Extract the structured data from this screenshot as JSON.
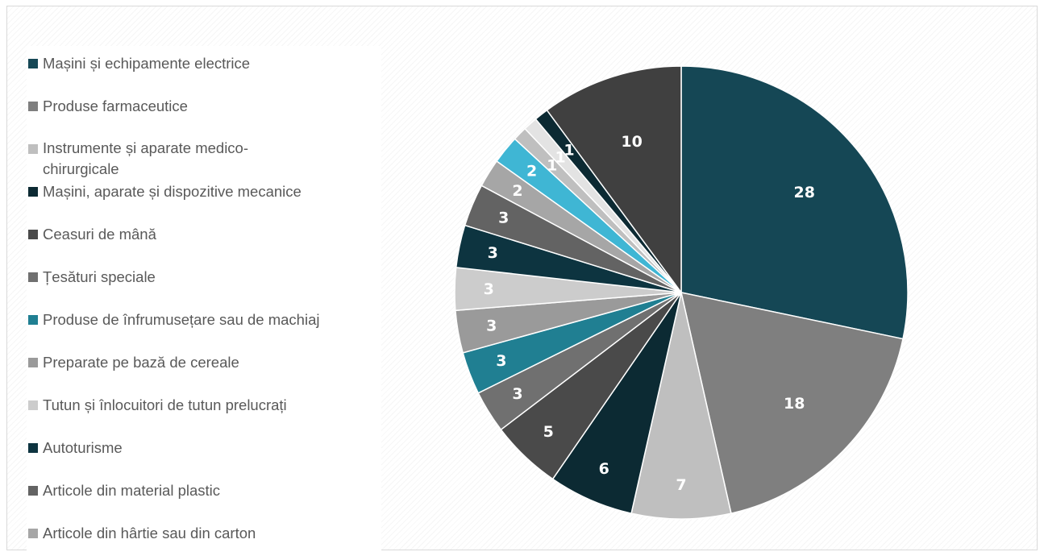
{
  "chart_data": {
    "type": "pie",
    "legend_placement": "left",
    "start_angle_deg": 0,
    "direction": "clockwise",
    "slices": [
      {
        "label": "Mașini și echipamente electrice",
        "value": 28,
        "color": "#154755",
        "label_color": "#ffffff"
      },
      {
        "label": "Produse farmaceutice",
        "value": 18,
        "color": "#7f7f7f",
        "label_color": "#ffffff"
      },
      {
        "label": "Instrumente și aparate medico-chirurgicale",
        "value": 7,
        "color": "#bfbfbf",
        "label_color": "#ffffff"
      },
      {
        "label": "Mașini, aparate și dispozitive mecanice",
        "value": 6,
        "color": "#0c2a33",
        "label_color": "#ffffff"
      },
      {
        "label": "Ceasuri de mână",
        "value": 5,
        "color": "#4a4a4a",
        "label_color": "#ffffff"
      },
      {
        "label": "Țesături speciale",
        "value": 3,
        "color": "#707070",
        "label_color": "#ffffff"
      },
      {
        "label": "Produse de înfrumusețare sau de machiaj",
        "value": 3,
        "color": "#207f92",
        "label_color": "#ffffff"
      },
      {
        "label": "Preparate pe bază de cereale",
        "value": 3,
        "color": "#9a9a9a",
        "label_color": "#ffffff"
      },
      {
        "label": "Tutun și înlocuitori de tutun prelucrați",
        "value": 3,
        "color": "#cccccc",
        "label_color": "#ffffff"
      },
      {
        "label": "Autoturisme",
        "value": 3,
        "color": "#0d3440",
        "label_color": "#ffffff"
      },
      {
        "label": "Articole din material plastic",
        "value": 3,
        "color": "#636363",
        "label_color": "#ffffff"
      },
      {
        "label": "Articole din hârtie sau din carton",
        "value": 2,
        "color": "#a6a6a6",
        "label_color": "#ffffff"
      },
      {
        "label": "",
        "value": 2,
        "color": "#3fb6d4",
        "label_color": "#ffffff"
      },
      {
        "label": "",
        "value": 1,
        "color": "#bfbfbf",
        "label_color": "#ffffff"
      },
      {
        "label": "",
        "value": 1,
        "color": "#e3e3e3",
        "label_color": "#ffffff"
      },
      {
        "label": "",
        "value": 1,
        "color": "#0c2a33",
        "label_color": "#ffffff"
      },
      {
        "label": "",
        "value": 10,
        "color": "#404040",
        "label_color": "#ffffff"
      }
    ]
  }
}
